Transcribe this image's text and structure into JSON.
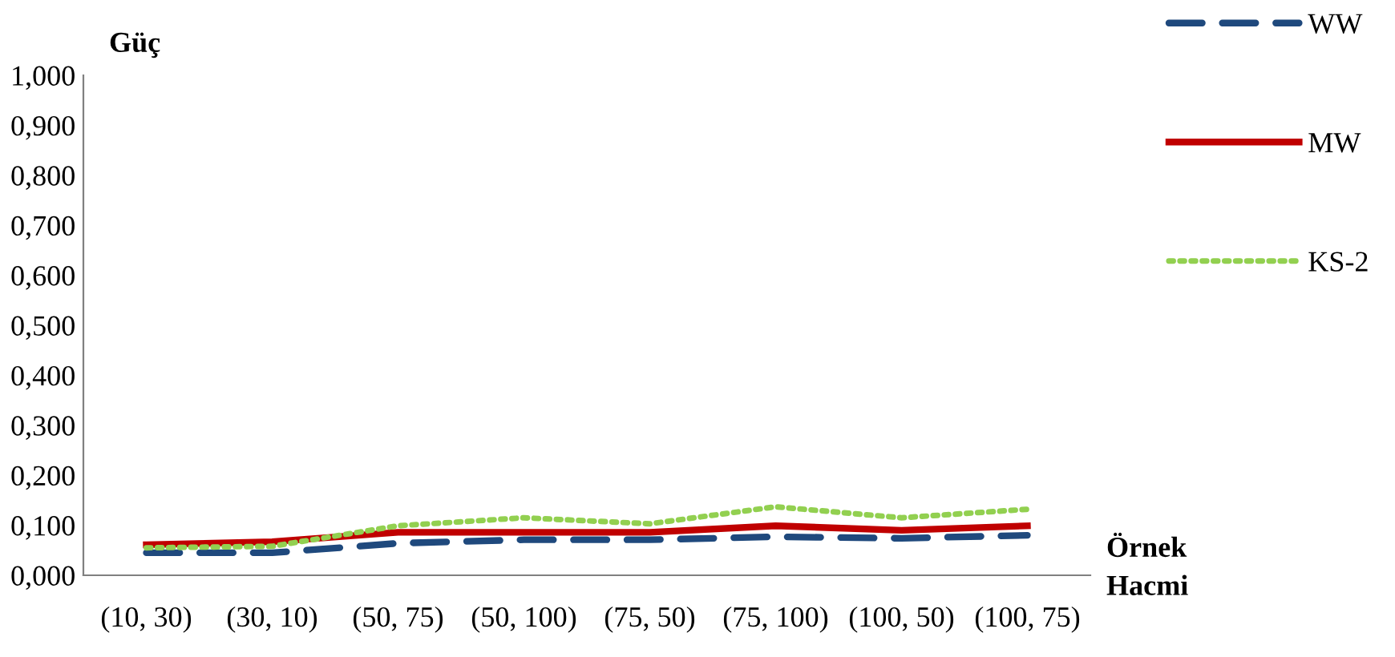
{
  "chart_data": {
    "type": "line",
    "ylabel": "Güç",
    "xlabel": "Örnek\nHacmi",
    "categories": [
      "(10, 30)",
      "(30, 10)",
      "(50, 75)",
      "(50, 100)",
      "(75, 50)",
      "(75, 100)",
      "(100, 50)",
      "(100, 75)"
    ],
    "series": [
      {
        "name": "WW",
        "color": "#1f497d",
        "line_style": "dashed",
        "values": [
          0.045,
          0.045,
          0.064,
          0.071,
          0.071,
          0.077,
          0.074,
          0.08
        ]
      },
      {
        "name": "MW",
        "color": "#c00000",
        "line_style": "solid",
        "values": [
          0.061,
          0.067,
          0.086,
          0.086,
          0.086,
          0.099,
          0.09,
          0.099
        ]
      },
      {
        "name": "KS-2",
        "color": "#92d050",
        "line_style": "dotted",
        "values": [
          0.055,
          0.058,
          0.099,
          0.115,
          0.103,
          0.137,
          0.115,
          0.132
        ]
      }
    ],
    "ylim": [
      0,
      1
    ],
    "yticks": [
      {
        "value": 0,
        "label": "0,000"
      },
      {
        "value": 0.1,
        "label": "0,100"
      },
      {
        "value": 0.2,
        "label": "0,200"
      },
      {
        "value": 0.3,
        "label": "0,300"
      },
      {
        "value": 0.4,
        "label": "0,400"
      },
      {
        "value": 0.5,
        "label": "0,500"
      },
      {
        "value": 0.6,
        "label": "0,600"
      },
      {
        "value": 0.7,
        "label": "0,700"
      },
      {
        "value": 0.8,
        "label": "0,800"
      },
      {
        "value": 0.9,
        "label": "0,900"
      },
      {
        "value": 1,
        "label": "1,000"
      }
    ],
    "grid": false,
    "legend": "top right",
    "marker": "none"
  }
}
